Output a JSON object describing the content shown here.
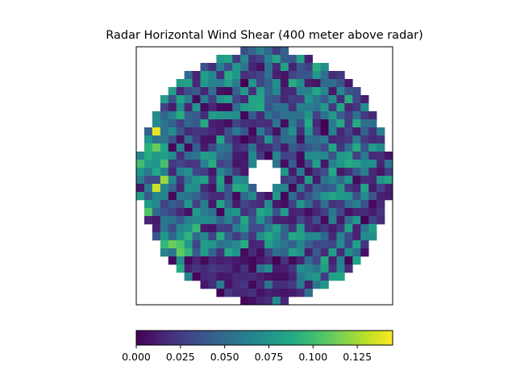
{
  "chart_data": {
    "type": "heatmap",
    "title": "Radar Horizontal Wind Shear (400 meter above radar)",
    "xlabel": "",
    "ylabel": "",
    "axes_ticks": "hidden",
    "grid": false,
    "colormap": "viridis",
    "colorbar": {
      "orientation": "horizontal",
      "placement": "bottom",
      "vmin": 0.0,
      "vmax": 0.145,
      "ticks": [
        0.0,
        0.025,
        0.05,
        0.075,
        0.1,
        0.125
      ],
      "tick_labels": [
        "0.000",
        "0.025",
        "0.050",
        "0.075",
        "0.100",
        "0.125"
      ]
    },
    "grid_size": {
      "cols": 32,
      "rows": 32
    },
    "domain_shape": "circular radar coverage with masked (no data) center and outer region",
    "values_note": "values per cell range 0.000 to ~0.145; high values clustered at the left edge and lower left; lowest values in a band at the bottom",
    "seed": 4021
  }
}
